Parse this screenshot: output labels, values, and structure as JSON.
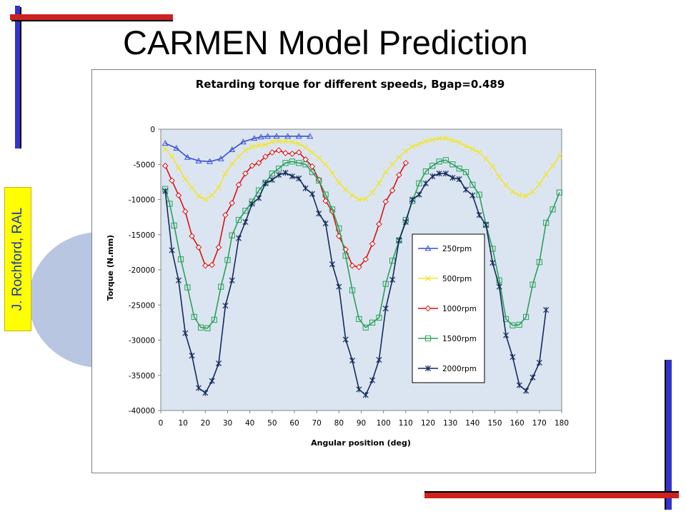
{
  "slide": {
    "title": "CARMEN Model Prediction",
    "author": "J. Rochford, RAL"
  },
  "colors": {
    "plot_bg": "#dbe5f1",
    "accent_blue": "#3333cc",
    "accent_red": "#cc2222",
    "s250": "#3a4fd6",
    "s500": "#f2e433",
    "s1000": "#dd1111",
    "s1500": "#2aa05a",
    "s2000": "#142a5a"
  },
  "chart_data": {
    "type": "line",
    "title": "Retarding torque for different speeds, Bgap=0.489",
    "xlabel": "Angular position (deg)",
    "ylabel": "Torque (N.mm)",
    "xlim": [
      0,
      180
    ],
    "ylim": [
      -40000,
      0
    ],
    "xticks": [
      "0",
      "10",
      "20",
      "30",
      "40",
      "50",
      "60",
      "70",
      "80",
      "90",
      "100",
      "110",
      "120",
      "130",
      "140",
      "150",
      "160",
      "170",
      "180"
    ],
    "yticks": [
      "0",
      "-5000",
      "-10000",
      "-15000",
      "-20000",
      "-25000",
      "-30000",
      "-35000",
      "-40000"
    ],
    "grid": false,
    "legend": "inside-right",
    "series": [
      {
        "name": "250rpm",
        "marker": "triangle",
        "x": [
          2,
          7,
          12,
          17,
          22,
          27,
          32,
          37,
          42,
          45,
          48,
          52,
          57,
          62,
          67
        ],
        "y": [
          -2000,
          -2700,
          -4000,
          -4500,
          -4600,
          -4200,
          -2900,
          -1800,
          -1300,
          -1100,
          -1000,
          -1000,
          -1000,
          -1000,
          -1000
        ]
      },
      {
        "name": "500rpm",
        "x": [
          2,
          5,
          8,
          11,
          14,
          17,
          20,
          23,
          26,
          29,
          32,
          35,
          38,
          41,
          44,
          47,
          50,
          53,
          56,
          59,
          62,
          65,
          68,
          71,
          74,
          77,
          80,
          83,
          86,
          89,
          92,
          95,
          98,
          101,
          104,
          107,
          110,
          113,
          116,
          119,
          122,
          125,
          128,
          131,
          134,
          137,
          140,
          143,
          146,
          149,
          152,
          155,
          158,
          161,
          164,
          167,
          170,
          173,
          176,
          179
        ],
        "y": [
          -2800,
          -3900,
          -5500,
          -7100,
          -8300,
          -9500,
          -10000,
          -9400,
          -8300,
          -6300,
          -4900,
          -3900,
          -3000,
          -2500,
          -2300,
          -2200,
          -1800,
          -1700,
          -1700,
          -1800,
          -2100,
          -2600,
          -3300,
          -4100,
          -5000,
          -6200,
          -7600,
          -8600,
          -9400,
          -10000,
          -9900,
          -9000,
          -7700,
          -6100,
          -5000,
          -4000,
          -3100,
          -2500,
          -2100,
          -1700,
          -1500,
          -1300,
          -1300,
          -1600,
          -1900,
          -2400,
          -2800,
          -3300,
          -4200,
          -5300,
          -6800,
          -8000,
          -8900,
          -9400,
          -9500,
          -8900,
          -7800,
          -6400,
          -5200,
          -3800
        ]
      },
      {
        "name": "1000rpm",
        "x": [
          2,
          5,
          8,
          11,
          14,
          17,
          20,
          23,
          26,
          29,
          32,
          35,
          38,
          41,
          44,
          47,
          50,
          53,
          56,
          59,
          62,
          65,
          68,
          71,
          74,
          77,
          80,
          83,
          86,
          89,
          92,
          95,
          98,
          101,
          104,
          107,
          110
        ],
        "y": [
          -5200,
          -7300,
          -9400,
          -11700,
          -15200,
          -16800,
          -19400,
          -19300,
          -16800,
          -12200,
          -10500,
          -7900,
          -6300,
          -5200,
          -4800,
          -3900,
          -3300,
          -3000,
          -3400,
          -3500,
          -3300,
          -4300,
          -5300,
          -7200,
          -10200,
          -11700,
          -15200,
          -17100,
          -19400,
          -19600,
          -18500,
          -16300,
          -13500,
          -10300,
          -8700,
          -6500,
          -4800
        ]
      },
      {
        "name": "1500rpm",
        "x": [
          2,
          4,
          6,
          9,
          12,
          15,
          18,
          21,
          24,
          27,
          30,
          32,
          35,
          38,
          41,
          44,
          47,
          50,
          53,
          56,
          59,
          62,
          65,
          68,
          71,
          74,
          77,
          80,
          83,
          86,
          89,
          92,
          95,
          98,
          101,
          104,
          107,
          110,
          113,
          116,
          119,
          122,
          125,
          128,
          131,
          134,
          137,
          140,
          143,
          146,
          149,
          152,
          155,
          158,
          161,
          164,
          167,
          170,
          173,
          176,
          179
        ],
        "y": [
          -8500,
          -10600,
          -13700,
          -18500,
          -22500,
          -26700,
          -28200,
          -28300,
          -27100,
          -22400,
          -18600,
          -15100,
          -12900,
          -11600,
          -10300,
          -8700,
          -7600,
          -6300,
          -5600,
          -4800,
          -4600,
          -4800,
          -5000,
          -6100,
          -7300,
          -9300,
          -11400,
          -14100,
          -18000,
          -22900,
          -27000,
          -28200,
          -27500,
          -26800,
          -22000,
          -18700,
          -15800,
          -12900,
          -10200,
          -7700,
          -6000,
          -5200,
          -4600,
          -4400,
          -5000,
          -5600,
          -6100,
          -7900,
          -9300,
          -13600,
          -17000,
          -21500,
          -27000,
          -27900,
          -27800,
          -26700,
          -22100,
          -18900,
          -13300,
          -11400,
          -9000
        ]
      },
      {
        "name": "2000rpm",
        "x": [
          2,
          5,
          8,
          11,
          14,
          17,
          20,
          23,
          26,
          29,
          32,
          35,
          38,
          41,
          44,
          47,
          50,
          53,
          56,
          59,
          62,
          65,
          68,
          71,
          74,
          77,
          80,
          83,
          86,
          89,
          92,
          95,
          98,
          101,
          104,
          107,
          110,
          113,
          116,
          119,
          122,
          125,
          128,
          131,
          134,
          137,
          140,
          143,
          146,
          149,
          152,
          155,
          158,
          161,
          164,
          167,
          170,
          173
        ],
        "y": [
          -8800,
          -17200,
          -21500,
          -29000,
          -32200,
          -36800,
          -37500,
          -35800,
          -33300,
          -25100,
          -21500,
          -15500,
          -13200,
          -10600,
          -9800,
          -7700,
          -7200,
          -6500,
          -6200,
          -6700,
          -7000,
          -8400,
          -9200,
          -12000,
          -13400,
          -19200,
          -22400,
          -29900,
          -32900,
          -37000,
          -37800,
          -35700,
          -32800,
          -25500,
          -21400,
          -15800,
          -13200,
          -10000,
          -9300,
          -7700,
          -6700,
          -6300,
          -6300,
          -6900,
          -7100,
          -8600,
          -9400,
          -12200,
          -13600,
          -19000,
          -22400,
          -29300,
          -32400,
          -36400,
          -37200,
          -35300,
          -33200,
          -25700
        ]
      }
    ]
  }
}
